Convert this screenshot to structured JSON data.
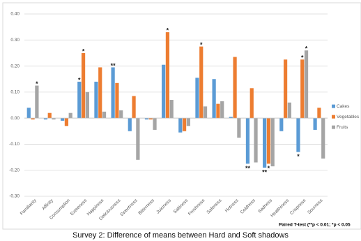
{
  "chart_data": {
    "type": "bar",
    "title": "Survey 2: Difference of means between Hard and Soft shadows",
    "footnote": "Paired T-test (**p < 0.01; *p < 0.05",
    "categories": [
      "Familiarity",
      "Affinity",
      "Consumption",
      "Exteeness",
      "Happiness",
      "Deliciousness",
      "Sweetness",
      "Bitterness",
      "Juiciness",
      "Saltiness",
      "Freshness",
      "Safeness",
      "Hotness",
      "Coldness",
      "Sadness",
      "Healthiness",
      "Crispness",
      "Sourness"
    ],
    "series": [
      {
        "name": "Cakes",
        "color": "#5b9bd5",
        "values": [
          0.04,
          -0.005,
          -0.01,
          0.14,
          0.14,
          0.195,
          -0.05,
          -0.005,
          0.205,
          -0.055,
          0.155,
          0.15,
          0.005,
          -0.175,
          -0.19,
          -0.05,
          -0.13,
          -0.045
        ]
      },
      {
        "name": "Vegetables",
        "color": "#ed7d31",
        "values": [
          -0.005,
          0.02,
          -0.03,
          0.25,
          0.195,
          0.135,
          0.085,
          -0.005,
          0.33,
          -0.05,
          0.275,
          0.055,
          0.235,
          0.115,
          -0.175,
          0.225,
          0.225,
          0.04
        ]
      },
      {
        "name": "Fruits",
        "color": "#a5a5a5",
        "values": [
          0.125,
          -0.005,
          0.02,
          0.1,
          0.025,
          0.03,
          -0.16,
          -0.045,
          0.07,
          -0.03,
          0.045,
          0.065,
          -0.075,
          -0.17,
          -0.185,
          0.06,
          0.26,
          -0.155
        ]
      }
    ],
    "annotations": [
      {
        "label": "*",
        "category": "Familiarity",
        "series": "Fruits"
      },
      {
        "label": "*",
        "category": "Exteeness",
        "series": "Cakes"
      },
      {
        "label": "*",
        "category": "Exteeness",
        "series": "Vegetables"
      },
      {
        "label": "**",
        "category": "Deliciousness",
        "series": "Cakes"
      },
      {
        "label": "*",
        "category": "Juiciness",
        "series": "Vegetables"
      },
      {
        "label": "*",
        "category": "Freshness",
        "series": "Vegetables"
      },
      {
        "label": "**",
        "category": "Coldness",
        "series": "Cakes"
      },
      {
        "label": "**",
        "category": "Sadness",
        "series": "Cakes"
      },
      {
        "label": "*",
        "category": "Sadness",
        "series": "Vegetables"
      },
      {
        "label": "*",
        "category": "Crispness",
        "series": "Cakes"
      },
      {
        "label": "*",
        "category": "Crispness",
        "series": "Vegetables"
      },
      {
        "label": "*",
        "category": "Crispness",
        "series": "Fruits"
      }
    ],
    "ylim": [
      -0.3,
      0.4
    ],
    "yticks": [
      {
        "value": -0.3,
        "label": "-0.30"
      },
      {
        "value": -0.2,
        "label": "-0.20"
      },
      {
        "value": -0.1,
        "label": "-0.10"
      },
      {
        "value": 0,
        "label": "0.00"
      },
      {
        "value": 0.1,
        "label": "0.10"
      },
      {
        "value": 0.2,
        "label": "0.20"
      },
      {
        "value": 0.3,
        "label": "0.30"
      },
      {
        "value": 0.4,
        "label": "0.40"
      }
    ],
    "grid": true,
    "legend": "right"
  }
}
